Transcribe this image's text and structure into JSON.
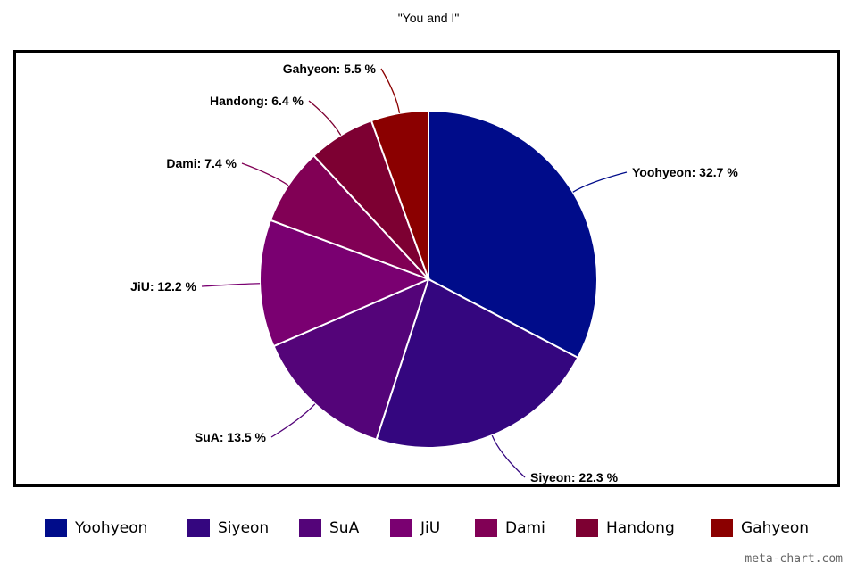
{
  "chart_data": {
    "type": "pie",
    "title": "\"You and I\"",
    "slices": [
      {
        "name": "Yoohyeon",
        "value": 32.7,
        "label": "Yoohyeon: 32.7 %",
        "color": "#000c8a"
      },
      {
        "name": "Siyeon",
        "value": 22.3,
        "label": "Siyeon: 22.3 %",
        "color": "#34067f"
      },
      {
        "name": "SuA",
        "value": 13.5,
        "label": "SuA: 13.5 %",
        "color": "#540479"
      },
      {
        "name": "JiU",
        "value": 12.2,
        "label": "JiU: 12.2 %",
        "color": "#7a0071"
      },
      {
        "name": "Dami",
        "value": 7.4,
        "label": "Dami: 7.4 %",
        "color": "#810055"
      },
      {
        "name": "Handong",
        "value": 6.4,
        "label": "Handong: 6.4 %",
        "color": "#7d0032"
      },
      {
        "name": "Gahyeon",
        "value": 5.5,
        "label": "Gahyeon: 5.5 %",
        "color": "#8b0000"
      }
    ],
    "legend_position": "bottom"
  },
  "watermark": "meta-chart.com"
}
